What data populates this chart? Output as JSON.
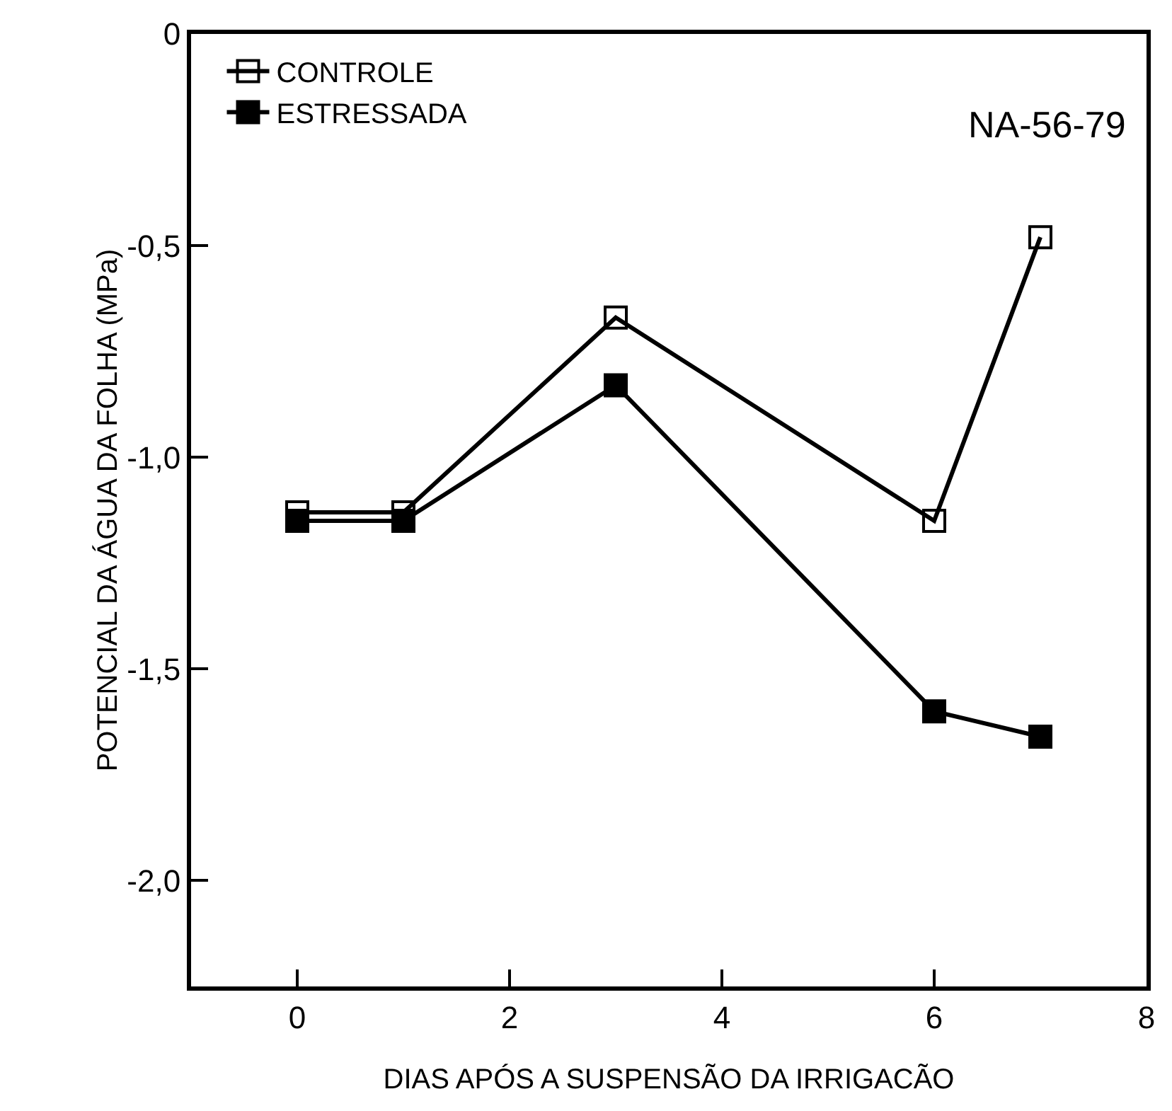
{
  "chart_data": {
    "type": "line",
    "xlabel": "DIAS APÓS A SUSPENSÃO DA IRRIGACÃO",
    "ylabel": "POTENCIAL DA ÁGUA DA FOLHA (MPa)",
    "annotations": [
      "NA-56-79"
    ],
    "x": [
      0,
      1,
      3,
      6,
      7
    ],
    "series": [
      {
        "name": "CONTROLE",
        "color": "#000000",
        "values": [
          -1.13,
          -1.13,
          -0.67,
          -1.15,
          -0.48
        ]
      },
      {
        "name": "ESTRESSADA",
        "color": "#000000",
        "values": [
          -1.15,
          -1.15,
          -0.83,
          -1.6,
          -1.66
        ]
      }
    ],
    "xlim": [
      -1,
      8
    ],
    "xticks": [
      0,
      2,
      4,
      6,
      8
    ],
    "ylim": [
      -2.25,
      0
    ],
    "yticks": [
      0,
      {
        "value": -0.5,
        "label": "-0,5"
      },
      {
        "value": -1,
        "label": "-1,0"
      },
      {
        "value": -1.5,
        "label": "-1,5"
      },
      {
        "value": -2,
        "label": "-2,0"
      }
    ],
    "marker": "square",
    "line_style": "solid",
    "grid": false,
    "legend": "top left"
  }
}
